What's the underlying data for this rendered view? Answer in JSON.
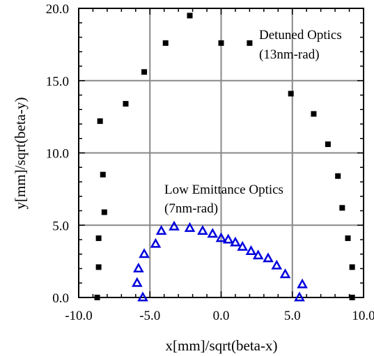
{
  "chart_data": {
    "type": "scatter",
    "xlabel": "x[mm]/sqrt(beta-x)",
    "ylabel": "y[mm]/sqrt(beta-y)",
    "xlim": [
      -10.0,
      10.0
    ],
    "ylim": [
      0.0,
      20.0
    ],
    "x_ticks": [
      -10.0,
      -5.0,
      0.0,
      5.0,
      10.0
    ],
    "y_ticks": [
      0.0,
      5.0,
      10.0,
      15.0,
      20.0
    ],
    "x_tick_labels": [
      "-10.0",
      "-5.0",
      "0.0",
      "5.0",
      "10.0"
    ],
    "y_tick_labels": [
      "0.0",
      "5.0",
      "10.0",
      "15.0",
      "20.0"
    ],
    "grid": true,
    "annotations": [
      {
        "lines": [
          "Detuned Optics",
          "(13nm-rad)"
        ],
        "series": "detuned"
      },
      {
        "lines": [
          "Low Emittance Optics",
          "(7nm-rad)"
        ],
        "series": "low_emittance"
      }
    ],
    "series": [
      {
        "id": "detuned",
        "marker": "square",
        "color": "#000000",
        "points": [
          [
            -8.7,
            0.0
          ],
          [
            -8.6,
            2.1
          ],
          [
            -8.6,
            4.1
          ],
          [
            -8.2,
            5.9
          ],
          [
            -8.3,
            8.5
          ],
          [
            -8.5,
            12.2
          ],
          [
            -6.7,
            13.4
          ],
          [
            -5.4,
            15.6
          ],
          [
            -3.9,
            17.6
          ],
          [
            -2.2,
            19.5
          ],
          [
            0.0,
            17.6
          ],
          [
            2.0,
            17.6
          ],
          [
            4.9,
            14.1
          ],
          [
            6.5,
            12.7
          ],
          [
            7.5,
            10.6
          ],
          [
            8.2,
            8.4
          ],
          [
            8.5,
            6.2
          ],
          [
            8.9,
            4.1
          ],
          [
            9.2,
            2.1
          ],
          [
            9.2,
            0.0
          ]
        ]
      },
      {
        "id": "low_emittance",
        "marker": "triangle",
        "color": "#0000dd",
        "points": [
          [
            -5.5,
            0.0
          ],
          [
            -5.9,
            1.0
          ],
          [
            -5.8,
            2.0
          ],
          [
            -5.4,
            3.0
          ],
          [
            -4.6,
            3.7
          ],
          [
            -4.2,
            4.6
          ],
          [
            -3.3,
            4.9
          ],
          [
            -2.2,
            4.8
          ],
          [
            -1.3,
            4.6
          ],
          [
            -0.6,
            4.4
          ],
          [
            0.0,
            4.1
          ],
          [
            0.5,
            4.0
          ],
          [
            1.0,
            3.8
          ],
          [
            1.5,
            3.5
          ],
          [
            2.1,
            3.2
          ],
          [
            2.6,
            2.9
          ],
          [
            3.3,
            2.7
          ],
          [
            3.9,
            2.2
          ],
          [
            4.5,
            1.6
          ],
          [
            5.7,
            0.9
          ],
          [
            5.5,
            0.0
          ]
        ]
      }
    ]
  }
}
